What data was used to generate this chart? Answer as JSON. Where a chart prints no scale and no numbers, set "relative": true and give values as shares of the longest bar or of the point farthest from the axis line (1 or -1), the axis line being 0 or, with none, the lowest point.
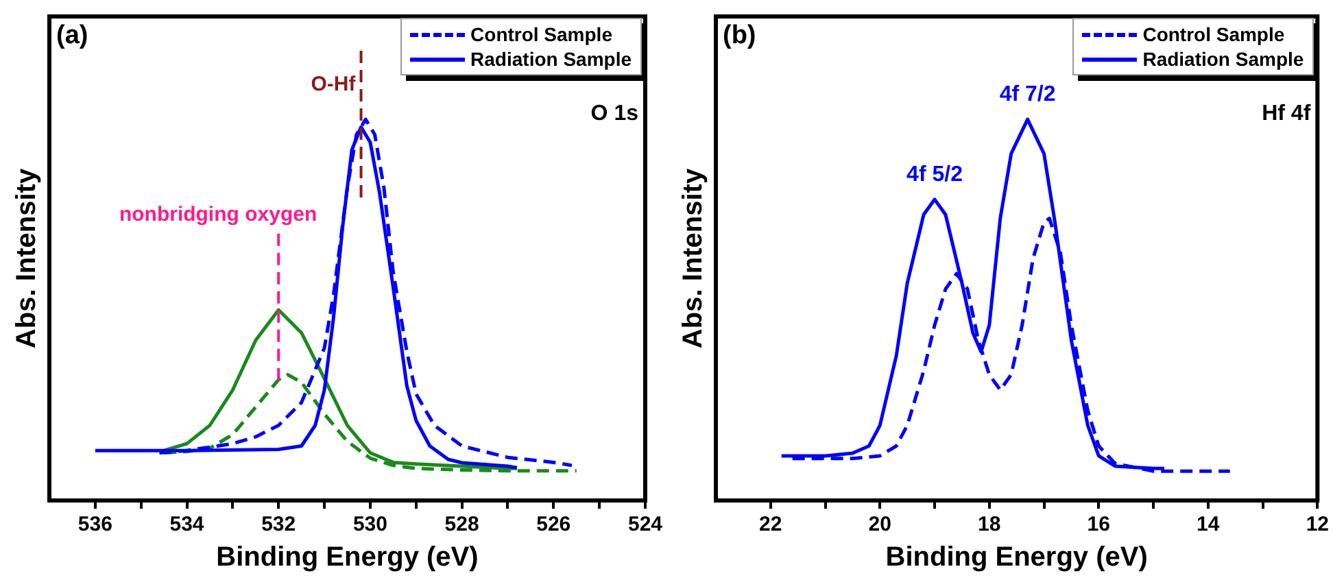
{
  "chart_data": [
    {
      "type": "line",
      "xlabel": "Binding Energy (eV)",
      "ylabel": "Abs. Intensity",
      "relative": true,
      "legend": "top right",
      "grid": false,
      "marker": "none",
      "xlim": [
        537,
        524
      ],
      "xticks": [
        536,
        {
          "value": 535,
          "label": null
        },
        534,
        {
          "value": 533,
          "label": null
        },
        532,
        {
          "value": 531,
          "label": null
        },
        530,
        {
          "value": 529,
          "label": null
        },
        528,
        {
          "value": 527,
          "label": null
        },
        526,
        {
          "value": 525,
          "label": null
        },
        524
      ],
      "annotations": [
        "(a)",
        "O 1s"
      ],
      "ref_lines": [
        {
          "axis": "x",
          "value": 530.2,
          "label": "O-Hf",
          "color": "#8b1a1a",
          "line_style": "dashed"
        },
        {
          "axis": "x",
          "value": 532.0,
          "label": "nonbridging oxygen",
          "color": "#ff1a8c",
          "line_style": "dashed"
        }
      ],
      "series": [
        {
          "name": "Control Sample",
          "color": "#0000ff",
          "line_style": "dashed",
          "x": [
            534.6,
            534,
            533,
            532.5,
            532,
            531.5,
            531,
            530.8,
            530.5,
            530.3,
            530.1,
            529.9,
            529.7,
            529.5,
            529.2,
            529,
            528.6,
            528,
            527,
            526,
            525.6
          ],
          "values": [
            0.125,
            0.131,
            0.149,
            0.167,
            0.197,
            0.257,
            0.4,
            0.54,
            0.82,
            0.96,
            1.0,
            0.96,
            0.82,
            0.6,
            0.39,
            0.28,
            0.197,
            0.143,
            0.113,
            0.1,
            0.092
          ]
        },
        {
          "name": "Radiation Sample",
          "color": "#0000ff",
          "line_style": "solid",
          "x": [
            536,
            534,
            532,
            531.5,
            531.2,
            531,
            530.8,
            530.6,
            530.4,
            530.2,
            530,
            529.8,
            529.5,
            529.2,
            529,
            528.7,
            528.3,
            528,
            527,
            526.8
          ],
          "values": [
            0.131,
            0.131,
            0.134,
            0.143,
            0.197,
            0.29,
            0.48,
            0.72,
            0.92,
            0.98,
            0.94,
            0.81,
            0.56,
            0.3,
            0.21,
            0.143,
            0.108,
            0.099,
            0.09,
            0.086
          ]
        },
        {
          "color": "#1a8a1a",
          "line_style": "solid",
          "x": [
            534.5,
            534,
            533.5,
            533,
            532.5,
            532,
            531.5,
            531,
            530.5,
            530,
            529.5,
            529,
            528,
            527,
            526.8
          ],
          "values": [
            0.131,
            0.149,
            0.197,
            0.29,
            0.42,
            0.5,
            0.44,
            0.32,
            0.197,
            0.125,
            0.1,
            0.096,
            0.09,
            0.084,
            0.084
          ]
        },
        {
          "color": "#1a8a1a",
          "line_style": "dashed",
          "x": [
            534.5,
            534,
            533.5,
            533,
            532.5,
            532,
            531.8,
            531.5,
            531,
            530.5,
            530,
            529.5,
            529,
            528,
            527,
            525.5
          ],
          "values": [
            0.125,
            0.128,
            0.137,
            0.173,
            0.245,
            0.317,
            0.33,
            0.31,
            0.227,
            0.155,
            0.111,
            0.092,
            0.084,
            0.08,
            0.078,
            0.078
          ]
        }
      ]
    },
    {
      "type": "line",
      "xlabel": "Binding Energy (eV)",
      "ylabel": "Abs. Intensity",
      "relative": true,
      "legend": "top right",
      "grid": false,
      "marker": "none",
      "xlim": [
        23,
        12
      ],
      "xticks": [
        22,
        {
          "value": 21,
          "label": null
        },
        20,
        {
          "value": 19,
          "label": null
        },
        18,
        {
          "value": 17,
          "label": null
        },
        16,
        {
          "value": 15,
          "label": null
        },
        14,
        {
          "value": 13,
          "label": null
        },
        12
      ],
      "annotations": [
        "(b)",
        "Hf 4f",
        {
          "text": "4f 5/2",
          "x": 19.0,
          "y": 0.79
        },
        {
          "text": "4f 7/2",
          "x": 17.3,
          "y": 1.0
        }
      ],
      "series": [
        {
          "name": "Control Sample",
          "color": "#0000ff",
          "line_style": "dashed",
          "x": [
            21.6,
            20.5,
            20,
            19.7,
            19.5,
            19.2,
            19,
            18.8,
            18.6,
            18.4,
            18.2,
            18,
            17.8,
            17.6,
            17.4,
            17.2,
            17,
            16.9,
            16.7,
            16.5,
            16.2,
            16,
            15.7,
            15,
            13.6
          ],
          "values": [
            0.11,
            0.11,
            0.117,
            0.143,
            0.197,
            0.34,
            0.46,
            0.555,
            0.595,
            0.555,
            0.42,
            0.33,
            0.29,
            0.33,
            0.46,
            0.635,
            0.73,
            0.74,
            0.65,
            0.46,
            0.236,
            0.143,
            0.097,
            0.077,
            0.077
          ]
        },
        {
          "name": "Radiation Sample",
          "color": "#0000ff",
          "line_style": "solid",
          "x": [
            21.8,
            21,
            20.5,
            20.2,
            20,
            19.7,
            19.5,
            19.2,
            19,
            18.8,
            18.5,
            18.3,
            18.15,
            18,
            17.8,
            17.6,
            17.3,
            17,
            16.8,
            16.5,
            16.2,
            16,
            15.7,
            15,
            14.8
          ],
          "values": [
            0.117,
            0.117,
            0.124,
            0.143,
            0.197,
            0.38,
            0.57,
            0.75,
            0.79,
            0.75,
            0.57,
            0.44,
            0.39,
            0.46,
            0.74,
            0.91,
            1.0,
            0.91,
            0.73,
            0.42,
            0.197,
            0.117,
            0.09,
            0.084,
            0.084
          ]
        }
      ]
    }
  ]
}
